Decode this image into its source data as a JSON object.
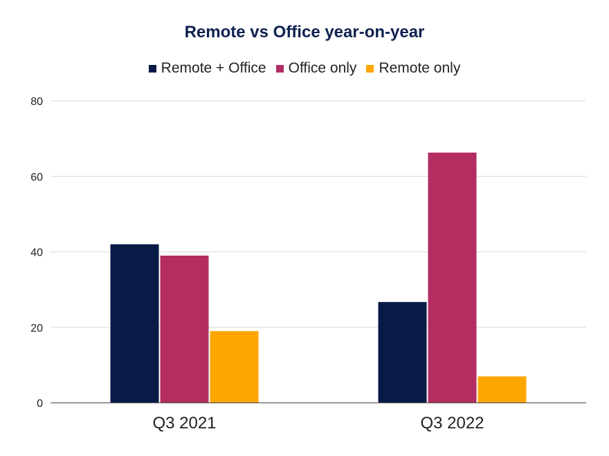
{
  "chart_data": {
    "type": "bar",
    "title": "Remote vs Office year-on-year",
    "xlabel": "",
    "ylabel": "",
    "categories": [
      "Q3 2021",
      "Q3 2022"
    ],
    "series": [
      {
        "name": "Remote + Office",
        "color": "#081a46",
        "values": [
          42,
          26.7
        ]
      },
      {
        "name": "Office only",
        "color": "#b32d61",
        "values": [
          39,
          66.3
        ]
      },
      {
        "name": "Remote only",
        "color": "#ffa600",
        "values": [
          19,
          7
        ]
      }
    ],
    "ylim": [
      0,
      80
    ],
    "yticks": [
      0,
      20,
      40,
      60,
      80
    ],
    "grid": true,
    "legend_position": "top"
  }
}
